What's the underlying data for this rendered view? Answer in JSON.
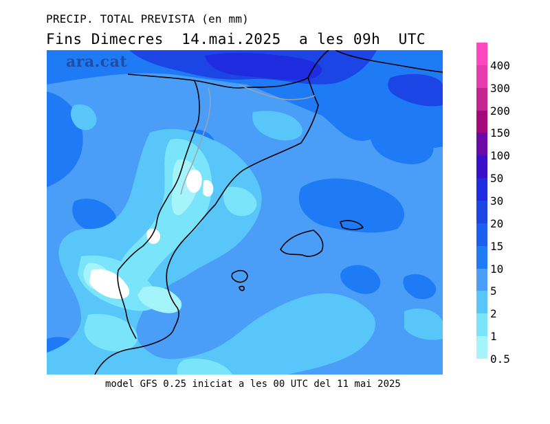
{
  "title_line1": "PRECIP. TOTAL PREVISTA (en mm)",
  "title_line2": "Fins Dimecres  14.mai.2025  a les 09h  UTC",
  "watermark": "ara.cat",
  "footer": "model GFS 0.25 iniciat a les 00 UTC del 11 mai 2025",
  "legend": [
    {
      "label": "400",
      "color": "#ff47c0"
    },
    {
      "label": "300",
      "color": "#e63aad"
    },
    {
      "label": "200",
      "color": "#c4248f"
    },
    {
      "label": "150",
      "color": "#a5087a"
    },
    {
      "label": "100",
      "color": "#6a0aa8"
    },
    {
      "label": "50",
      "color": "#3a0fc9"
    },
    {
      "label": "30",
      "color": "#1f2bde"
    },
    {
      "label": "20",
      "color": "#1c45e6"
    },
    {
      "label": "15",
      "color": "#1a5ff0"
    },
    {
      "label": "10",
      "color": "#1f7af6"
    },
    {
      "label": "5",
      "color": "#4a9ef7"
    },
    {
      "label": "2",
      "color": "#58c6f9"
    },
    {
      "label": "1",
      "color": "#79e4fa"
    },
    {
      "label": "0.5",
      "color": "#a6f4fb"
    }
  ]
}
